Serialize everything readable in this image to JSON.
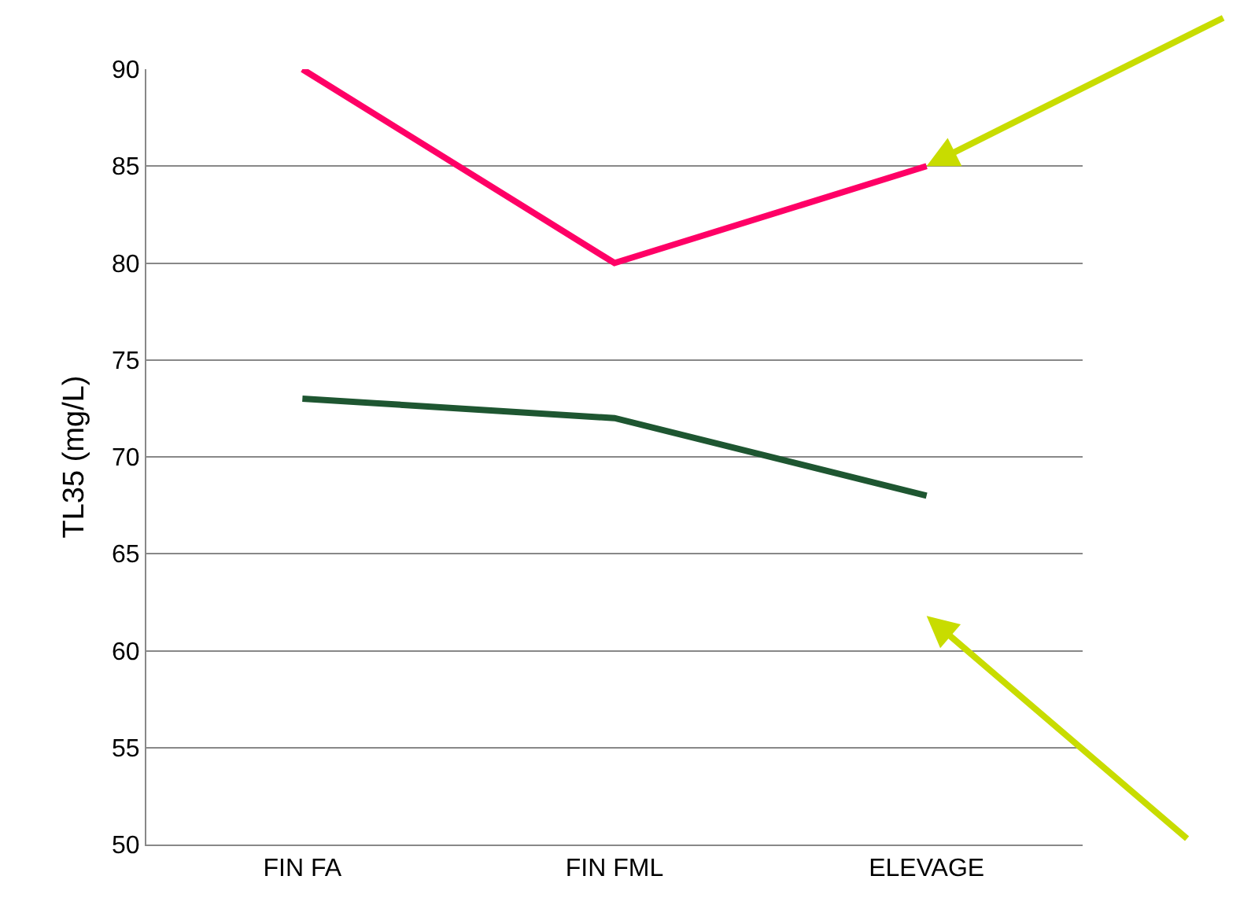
{
  "chart_data": {
    "type": "line",
    "ylabel": "TL35 (mg/L)",
    "categories": [
      "FIN FA",
      "FIN FML",
      "ELEVAGE"
    ],
    "series": [
      {
        "color": "#ff0066",
        "values": [
          90,
          80,
          85
        ]
      },
      {
        "color": "#1e5631",
        "values": [
          73,
          72,
          68
        ]
      }
    ],
    "ylim": [
      50,
      90
    ],
    "yticks": [
      50,
      55,
      60,
      65,
      70,
      75,
      80,
      85,
      90
    ],
    "grid": "y",
    "legend": false,
    "marker": "none",
    "line_style": "solid"
  }
}
